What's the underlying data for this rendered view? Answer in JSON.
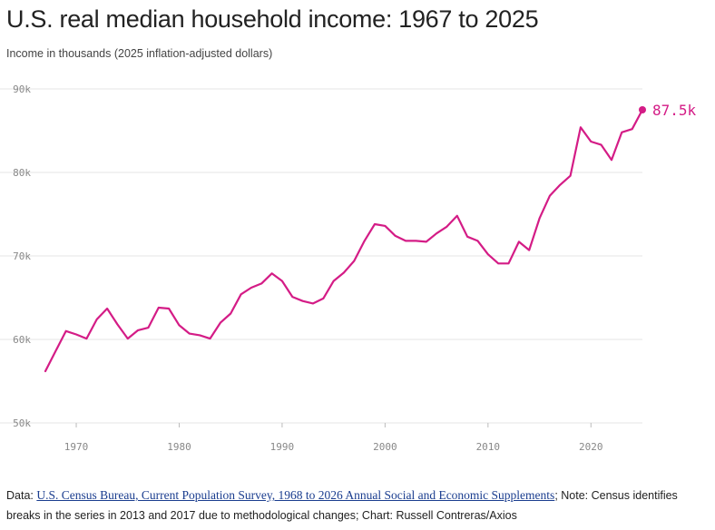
{
  "header": {
    "title": "U.S. real median household income: 1967 to 2025",
    "subtitle": "Income in thousands (2025 inflation-adjusted dollars)"
  },
  "colors": {
    "line": "#d41c86",
    "grid": "#e6e6e6",
    "tick": "#888888"
  },
  "chart_data": {
    "type": "line",
    "title": "U.S. real median household income: 1967 to 2025",
    "ylabel": "Income in thousands (2025 inflation-adjusted dollars)",
    "xlim": [
      1967,
      2025
    ],
    "ylim": [
      50,
      90
    ],
    "x_ticks": [
      1970,
      1980,
      1990,
      2000,
      2010,
      2020
    ],
    "y_ticks": [
      50,
      60,
      70,
      80,
      90
    ],
    "y_tick_labels": [
      "50k",
      "60k",
      "70k",
      "80k",
      "90k"
    ],
    "grid": true,
    "end_label": "87.5k",
    "series": [
      {
        "x": [
          1967,
          1968,
          1969,
          1970,
          1971,
          1972,
          1973,
          1974,
          1975,
          1976,
          1977,
          1978,
          1979,
          1980,
          1981,
          1982,
          1983,
          1984,
          1985,
          1986,
          1987,
          1988,
          1989,
          1990,
          1991,
          1992,
          1993,
          1994,
          1995,
          1996,
          1997,
          1998,
          1999,
          2000,
          2001,
          2002,
          2003,
          2004,
          2005,
          2006,
          2007,
          2008,
          2009,
          2010,
          2011,
          2012,
          2013,
          2014,
          2015,
          2016,
          2017,
          2018,
          2019,
          2020,
          2021,
          2022,
          2023,
          2024,
          2025
        ],
        "values": [
          56.2,
          58.6,
          61.0,
          60.6,
          60.1,
          62.4,
          63.7,
          61.8,
          60.1,
          61.1,
          61.4,
          63.8,
          63.7,
          61.7,
          60.7,
          60.5,
          60.1,
          62.0,
          63.1,
          65.4,
          66.2,
          66.7,
          67.9,
          67.0,
          65.1,
          64.6,
          64.3,
          64.9,
          67.0,
          68.0,
          69.4,
          71.8,
          73.8,
          73.6,
          72.4,
          71.8,
          71.8,
          71.7,
          72.7,
          73.5,
          74.8,
          72.3,
          71.8,
          70.2,
          69.1,
          69.1,
          71.7,
          70.7,
          74.5,
          77.2,
          78.5,
          79.6,
          85.4,
          83.7,
          83.3,
          81.5,
          84.8,
          85.2,
          87.5
        ]
      }
    ]
  },
  "footer": {
    "data_prefix": "Data: ",
    "source_link": "U.S. Census Bureau, Current Population Survey, 1968 to 2026 Annual Social and Economic Supplements",
    "note": "; Note: Census identifies breaks in the series in 2013 and 2017 due to methodological changes; Chart: Russell Contreras/Axios"
  }
}
